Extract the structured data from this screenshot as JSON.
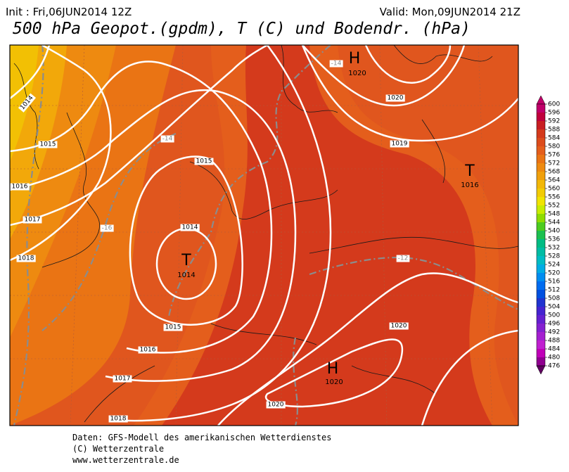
{
  "header": {
    "init": "Init : Fri,06JUN2014 12Z",
    "valid": "Valid: Mon,09JUN2014 21Z",
    "title": "500 hPa Geopot.(gpdm), T (C) und Bodendr. (hPa)"
  },
  "map": {
    "isobar_labels": [
      "1014",
      "1015",
      "1016",
      "1017",
      "1018",
      "1015",
      "1014",
      "1015",
      "1016",
      "1017",
      "1018",
      "1020",
      "1019",
      "1020",
      "1020"
    ],
    "temperature_labels": [
      "-14",
      "-14",
      "-16",
      "-12"
    ],
    "pressure_centers": [
      {
        "symbol": "H",
        "value": "1020"
      },
      {
        "symbol": "T",
        "value": "1014"
      },
      {
        "symbol": "T",
        "value": "1016"
      },
      {
        "symbol": "H",
        "value": "1020"
      }
    ]
  },
  "colorbar": {
    "labels": [
      600,
      596,
      592,
      588,
      584,
      580,
      576,
      572,
      568,
      564,
      560,
      556,
      552,
      548,
      544,
      540,
      536,
      532,
      528,
      524,
      520,
      516,
      512,
      508,
      504,
      500,
      496,
      492,
      488,
      484,
      480,
      476
    ],
    "colors": [
      "#c0006a",
      "#c0003c",
      "#c81e22",
      "#d43a1c",
      "#dc4c1c",
      "#e45e1c",
      "#ea7414",
      "#ee8a10",
      "#f0a00c",
      "#f2b808",
      "#f2cc04",
      "#f0e400",
      "#c8ec00",
      "#8edc00",
      "#4ccc20",
      "#1cc050",
      "#00bc84",
      "#00bca4",
      "#00bcc4",
      "#00ace4",
      "#008cf0",
      "#006cf0",
      "#0050e0",
      "#2034d0",
      "#4424d0",
      "#6420d0",
      "#8420d0",
      "#a420d0",
      "#c020d0",
      "#c000b8",
      "#900090",
      "#600060"
    ]
  },
  "footer": {
    "lines": [
      "Daten: GFS-Modell des amerikanischen Wetterdienstes",
      "(C) Wetterzentrale",
      "www.wetterzentrale.de"
    ]
  }
}
